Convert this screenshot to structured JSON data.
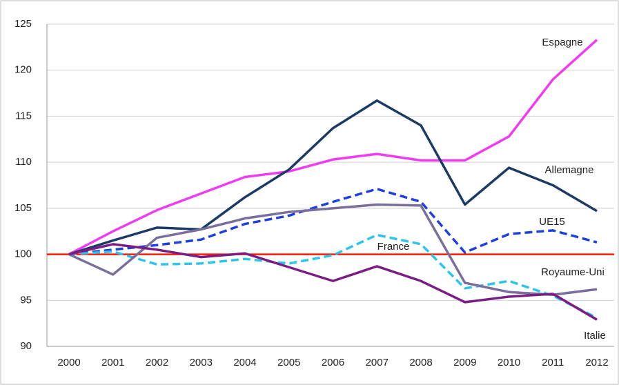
{
  "chart_data": {
    "type": "line",
    "categories": [
      "2000",
      "2001",
      "2002",
      "2003",
      "2004",
      "2005",
      "2006",
      "2007",
      "2008",
      "2009",
      "2010",
      "2011",
      "2012"
    ],
    "series": [
      {
        "name": "Espagne",
        "color": "#f03cf0",
        "dash": false,
        "values": [
          100,
          102.5,
          104.8,
          106.6,
          108.4,
          109.0,
          110.3,
          110.9,
          110.2,
          110.2,
          112.8,
          119.0,
          123.3
        ]
      },
      {
        "name": "Allemagne",
        "color": "#1c3a66",
        "dash": false,
        "values": [
          100,
          101.5,
          102.9,
          102.7,
          106.2,
          109.2,
          113.7,
          116.7,
          114.0,
          105.4,
          109.4,
          107.5,
          104.7
        ]
      },
      {
        "name": "UE15",
        "color": "#1e3fe0",
        "dash": true,
        "values": [
          100,
          100.5,
          101.0,
          101.6,
          103.3,
          104.2,
          105.7,
          107.1,
          105.7,
          100.2,
          102.2,
          102.6,
          101.3
        ]
      },
      {
        "name": "France",
        "color": "#2cc4ec",
        "dash": true,
        "values": [
          100,
          100.3,
          98.9,
          99.0,
          99.5,
          99.0,
          99.9,
          102.1,
          101.1,
          96.3,
          97.1,
          95.5,
          93.1
        ]
      },
      {
        "name": "Royaume-Uni",
        "color": "#7a6e9c",
        "dash": false,
        "values": [
          100,
          97.8,
          101.8,
          102.7,
          103.9,
          104.6,
          105.0,
          105.4,
          105.3,
          96.9,
          95.9,
          95.6,
          96.2
        ]
      },
      {
        "name": "Italie",
        "color": "#7a1e84",
        "dash": false,
        "values": [
          100,
          101.1,
          100.5,
          99.7,
          100.1,
          98.6,
          97.1,
          98.7,
          97.1,
          94.8,
          95.4,
          95.7,
          92.9
        ]
      }
    ],
    "reference": 100,
    "reference_color": "#ff1a00",
    "ylim": [
      90,
      125
    ],
    "yticks": [
      90,
      95,
      100,
      105,
      110,
      115,
      120,
      125
    ],
    "grid": true
  }
}
